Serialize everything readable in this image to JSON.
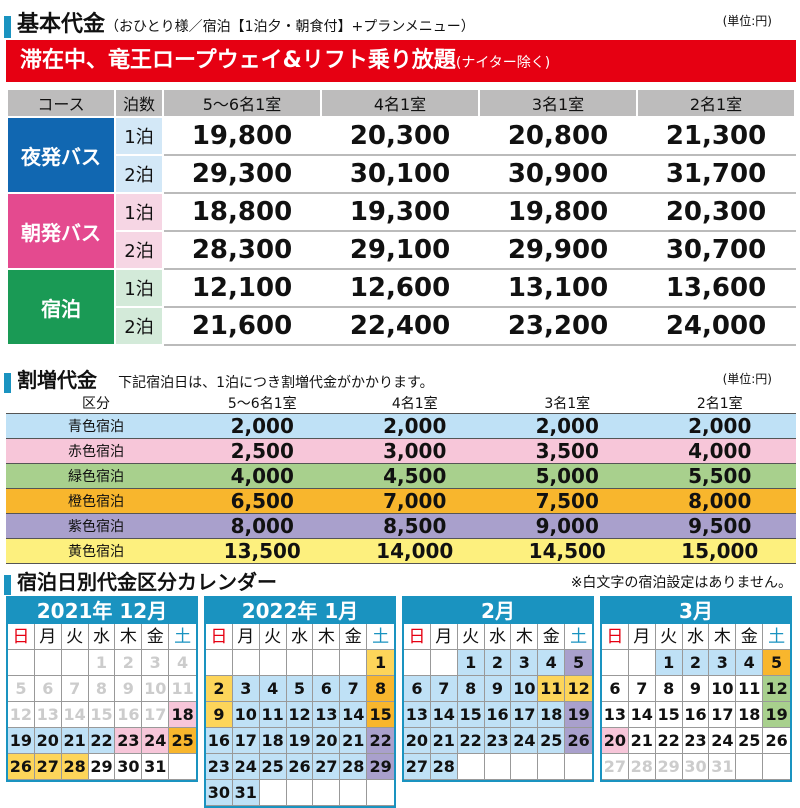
{
  "header": {
    "title": "基本代金",
    "subtitle": "（おひとり様／宿泊【1泊夕・朝食付】+プランメニュー）",
    "unit": "(単位:円)"
  },
  "banner": {
    "main": "滞在中、竜王ロープウェイ&リフト乗り放題",
    "note": "(ナイター除く)"
  },
  "base_table": {
    "headers": [
      "コース",
      "泊数",
      "5〜6名1室",
      "4名1室",
      "3名1室",
      "2名1室"
    ],
    "rows": [
      {
        "course": "夜発バス",
        "night": "1泊",
        "prices": [
          "19,800",
          "20,300",
          "20,800",
          "21,300"
        ]
      },
      {
        "course": "",
        "night": "2泊",
        "prices": [
          "29,300",
          "30,100",
          "30,900",
          "31,700"
        ]
      },
      {
        "course": "朝発バス",
        "night": "1泊",
        "prices": [
          "18,800",
          "19,300",
          "19,800",
          "20,300"
        ]
      },
      {
        "course": "",
        "night": "2泊",
        "prices": [
          "28,300",
          "29,100",
          "29,900",
          "30,700"
        ]
      },
      {
        "course": "宿泊",
        "night": "1泊",
        "prices": [
          "12,100",
          "12,600",
          "13,100",
          "13,600"
        ]
      },
      {
        "course": "",
        "night": "2泊",
        "prices": [
          "21,600",
          "22,400",
          "23,200",
          "24,000"
        ]
      }
    ]
  },
  "surcharge": {
    "title": "割増代金",
    "note": "下記宿泊日は、1泊につき割増代金がかかります。",
    "unit": "(単位:円)",
    "headers": [
      "区分",
      "5〜6名1室",
      "4名1室",
      "3名1室",
      "2名1室"
    ],
    "rows": [
      {
        "label": "青色宿泊",
        "color": "#bfe1f6",
        "values": [
          "2,000",
          "2,000",
          "2,000",
          "2,000"
        ]
      },
      {
        "label": "赤色宿泊",
        "color": "#f7c6d9",
        "values": [
          "2,500",
          "3,000",
          "3,500",
          "4,000"
        ]
      },
      {
        "label": "緑色宿泊",
        "color": "#a8d08d",
        "values": [
          "4,000",
          "4,500",
          "5,000",
          "5,500"
        ]
      },
      {
        "label": "橙色宿泊",
        "color": "#f8b62d",
        "values": [
          "6,500",
          "7,000",
          "7,500",
          "8,000"
        ]
      },
      {
        "label": "紫色宿泊",
        "color": "#a9a0cc",
        "values": [
          "8,000",
          "8,500",
          "9,000",
          "9,500"
        ]
      },
      {
        "label": "黄色宿泊",
        "color": "#fdf07e",
        "values": [
          "13,500",
          "14,000",
          "14,500",
          "15,000"
        ]
      }
    ]
  },
  "calendar": {
    "title": "宿泊日別代金区分カレンダー",
    "note": "※白文字の宿泊設定はありません。",
    "dow": [
      "日",
      "月",
      "火",
      "水",
      "木",
      "金",
      "土"
    ],
    "months": [
      {
        "title": "2021年 12月",
        "cells": [
          [
            "",
            "n"
          ],
          [
            "",
            "n"
          ],
          [
            "",
            "n"
          ],
          [
            "1",
            "w"
          ],
          [
            "2",
            "w"
          ],
          [
            "3",
            "w"
          ],
          [
            "4",
            "w"
          ],
          [
            "5",
            "w"
          ],
          [
            "6",
            "w"
          ],
          [
            "7",
            "w"
          ],
          [
            "8",
            "w"
          ],
          [
            "9",
            "w"
          ],
          [
            "10",
            "w"
          ],
          [
            "11",
            "w"
          ],
          [
            "12",
            "w"
          ],
          [
            "13",
            "w"
          ],
          [
            "14",
            "w"
          ],
          [
            "15",
            "w"
          ],
          [
            "16",
            "w"
          ],
          [
            "17",
            "w"
          ],
          [
            "18",
            "p"
          ],
          [
            "19",
            "b"
          ],
          [
            "20",
            "b"
          ],
          [
            "21",
            "b"
          ],
          [
            "22",
            "b"
          ],
          [
            "23",
            "p"
          ],
          [
            "24",
            "p"
          ],
          [
            "25",
            "o"
          ],
          [
            "26",
            "y"
          ],
          [
            "27",
            "y"
          ],
          [
            "28",
            "y"
          ],
          [
            "29",
            "n"
          ],
          [
            "30",
            "n"
          ],
          [
            "31",
            "n"
          ],
          [
            "",
            "n"
          ]
        ]
      },
      {
        "title": "2022年 1月",
        "cells": [
          [
            "",
            "n"
          ],
          [
            "",
            "n"
          ],
          [
            "",
            "n"
          ],
          [
            "",
            "n"
          ],
          [
            "",
            "n"
          ],
          [
            "",
            "n"
          ],
          [
            "1",
            "y"
          ],
          [
            "2",
            "y"
          ],
          [
            "3",
            "b"
          ],
          [
            "4",
            "b"
          ],
          [
            "5",
            "b"
          ],
          [
            "6",
            "b"
          ],
          [
            "7",
            "b"
          ],
          [
            "8",
            "o"
          ],
          [
            "9",
            "y"
          ],
          [
            "10",
            "b"
          ],
          [
            "11",
            "b"
          ],
          [
            "12",
            "b"
          ],
          [
            "13",
            "b"
          ],
          [
            "14",
            "b"
          ],
          [
            "15",
            "o"
          ],
          [
            "16",
            "b"
          ],
          [
            "17",
            "b"
          ],
          [
            "18",
            "b"
          ],
          [
            "19",
            "b"
          ],
          [
            "20",
            "b"
          ],
          [
            "21",
            "b"
          ],
          [
            "22",
            "u"
          ],
          [
            "23",
            "b"
          ],
          [
            "24",
            "b"
          ],
          [
            "25",
            "b"
          ],
          [
            "26",
            "b"
          ],
          [
            "27",
            "b"
          ],
          [
            "28",
            "b"
          ],
          [
            "29",
            "u"
          ],
          [
            "30",
            "b"
          ],
          [
            "31",
            "b"
          ],
          [
            "",
            "n"
          ],
          [
            "",
            "n"
          ],
          [
            "",
            "n"
          ],
          [
            "",
            "n"
          ],
          [
            "",
            "n"
          ]
        ]
      },
      {
        "title": "2月",
        "cells": [
          [
            "",
            "n"
          ],
          [
            "",
            "n"
          ],
          [
            "1",
            "b"
          ],
          [
            "2",
            "b"
          ],
          [
            "3",
            "b"
          ],
          [
            "4",
            "b"
          ],
          [
            "5",
            "u"
          ],
          [
            "6",
            "b"
          ],
          [
            "7",
            "b"
          ],
          [
            "8",
            "b"
          ],
          [
            "9",
            "b"
          ],
          [
            "10",
            "b"
          ],
          [
            "11",
            "yl"
          ],
          [
            "12",
            "yl"
          ],
          [
            "13",
            "b"
          ],
          [
            "14",
            "b"
          ],
          [
            "15",
            "b"
          ],
          [
            "16",
            "b"
          ],
          [
            "17",
            "b"
          ],
          [
            "18",
            "b"
          ],
          [
            "19",
            "u"
          ],
          [
            "20",
            "b"
          ],
          [
            "21",
            "b"
          ],
          [
            "22",
            "b"
          ],
          [
            "23",
            "b"
          ],
          [
            "24",
            "b"
          ],
          [
            "25",
            "b"
          ],
          [
            "26",
            "u"
          ],
          [
            "27",
            "b"
          ],
          [
            "28",
            "b"
          ],
          [
            "",
            "n"
          ],
          [
            "",
            "n"
          ],
          [
            "",
            "n"
          ],
          [
            "",
            "n"
          ],
          [
            "",
            "n"
          ]
        ]
      },
      {
        "title": "3月",
        "cells": [
          [
            "",
            "n"
          ],
          [
            "",
            "n"
          ],
          [
            "1",
            "b"
          ],
          [
            "2",
            "b"
          ],
          [
            "3",
            "b"
          ],
          [
            "4",
            "b"
          ],
          [
            "5",
            "o"
          ],
          [
            "6",
            "n"
          ],
          [
            "7",
            "n"
          ],
          [
            "8",
            "n"
          ],
          [
            "9",
            "n"
          ],
          [
            "10",
            "n"
          ],
          [
            "11",
            "n"
          ],
          [
            "12",
            "g"
          ],
          [
            "13",
            "n"
          ],
          [
            "14",
            "n"
          ],
          [
            "15",
            "n"
          ],
          [
            "16",
            "n"
          ],
          [
            "17",
            "n"
          ],
          [
            "18",
            "n"
          ],
          [
            "19",
            "g"
          ],
          [
            "20",
            "p"
          ],
          [
            "21",
            "n"
          ],
          [
            "22",
            "n"
          ],
          [
            "23",
            "n"
          ],
          [
            "24",
            "n"
          ],
          [
            "25",
            "n"
          ],
          [
            "26",
            "n"
          ],
          [
            "27",
            "w"
          ],
          [
            "28",
            "w"
          ],
          [
            "29",
            "w"
          ],
          [
            "30",
            "w"
          ],
          [
            "31",
            "w"
          ],
          [
            "",
            "n"
          ],
          [
            "",
            "n"
          ]
        ]
      }
    ]
  }
}
